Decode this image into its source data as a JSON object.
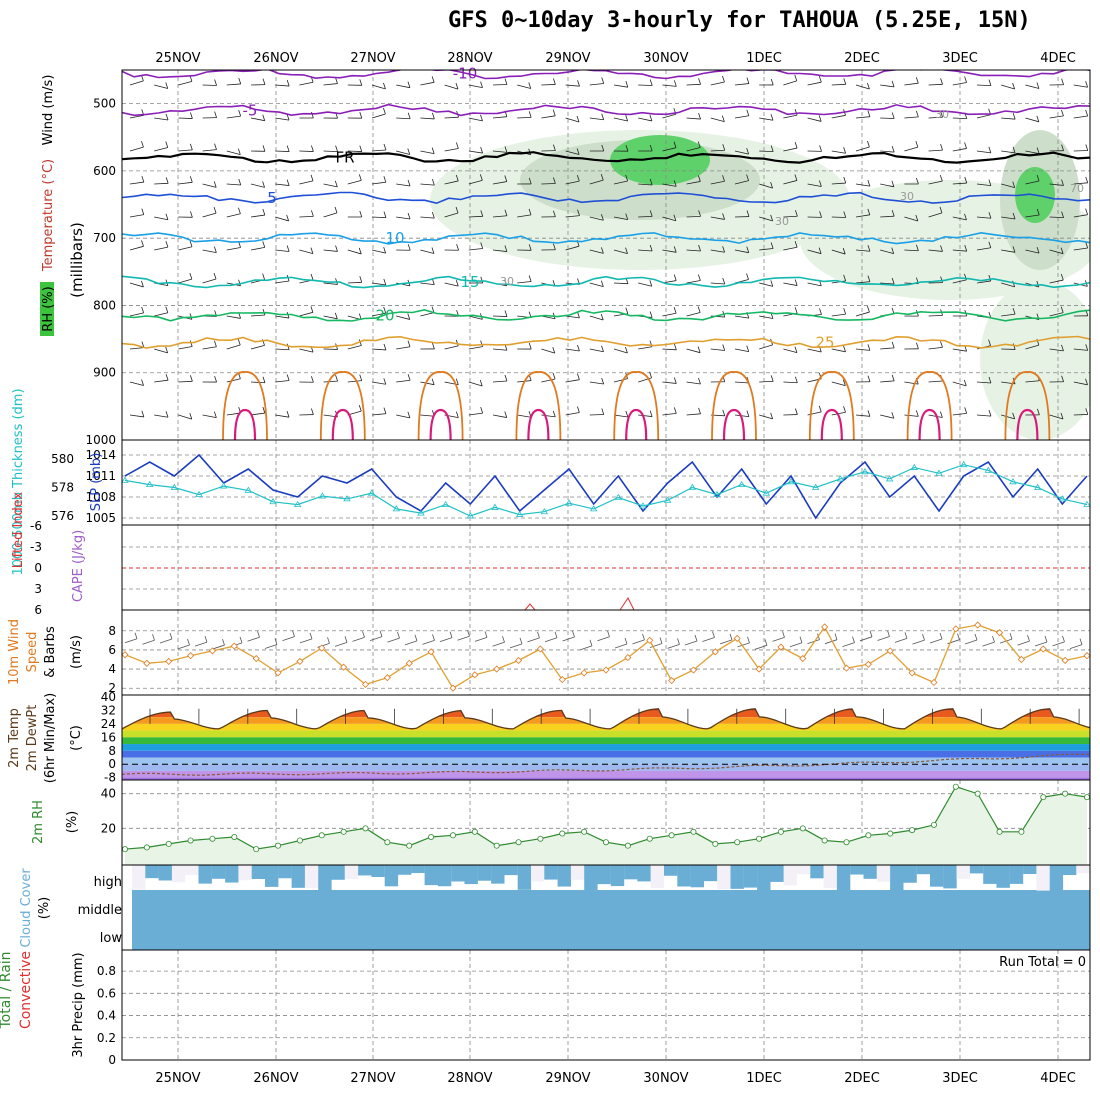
{
  "title": "GFS 0~10day 3-hourly for TAHOUA (5.25E, 15N)",
  "colors": {
    "grid": "#888888",
    "purple": "#8a1fb8",
    "black": "#000000",
    "blue": "#1f4fd6",
    "lightblue": "#1aa0e6",
    "teal": "#10b8b0",
    "green": "#14b860",
    "gold": "#e0a030",
    "orange": "#e07a20",
    "magenta": "#d81b7a",
    "rh_green": "#5fd16a",
    "slp": "#1a3cc0",
    "thick": "#20c0c8",
    "cloud": "#6aaed6",
    "cape": "#a05cc8",
    "li": "#e03030"
  },
  "chart_data": [
    {
      "type": "line",
      "panel": "cross-section",
      "ylabel": [
        "RH (%)",
        "Temperature (°C)",
        "Wind (m/s)",
        "(millibars)"
      ],
      "y_ticks": [
        "500",
        "600",
        "700",
        "800",
        "900",
        "1000"
      ],
      "x_ticks": [
        "25NOV",
        "26NOV",
        "27NOV",
        "28NOV",
        "29NOV",
        "30NOV",
        "1DEC",
        "2DEC",
        "3DEC",
        "4DEC"
      ],
      "series": [
        {
          "name": "-10",
          "level_mb": 455
        },
        {
          "name": "-5",
          "level_mb": 510
        },
        {
          "name": "FR",
          "level_mb": 580
        },
        {
          "name": "5",
          "level_mb": 640
        },
        {
          "name": "10",
          "level_mb": 700
        },
        {
          "name": "15",
          "level_mb": 765
        },
        {
          "name": "20",
          "level_mb": 815
        },
        {
          "name": "25",
          "level_mb": 855
        }
      ],
      "rh_labels": [
        "30",
        "30",
        "30",
        "30",
        "70"
      ]
    },
    {
      "type": "line",
      "panel": "slp-thickness",
      "ylabel_left": "1000-500mb Thickness (dm)",
      "ylabel_right": "SLP (mb)",
      "y_ticks_left": [
        "580",
        "578",
        "576"
      ],
      "y_ticks_right": [
        "1014",
        "1011",
        "1008",
        "1005"
      ],
      "slp": [
        1011,
        1013,
        1011,
        1014,
        1010,
        1012,
        1009,
        1008,
        1011,
        1010,
        1012,
        1008,
        1006,
        1010,
        1007,
        1011,
        1006,
        1009,
        1012,
        1007,
        1011,
        1006,
        1010,
        1013,
        1008,
        1012,
        1007,
        1011,
        1005,
        1010,
        1013,
        1008,
        1011,
        1006,
        1011,
        1013,
        1008,
        1012,
        1007,
        1011
      ],
      "thickness": [
        578.5,
        578.2,
        578.0,
        577.5,
        578.1,
        577.8,
        577.0,
        576.8,
        577.4,
        577.2,
        577.6,
        576.5,
        576.2,
        576.8,
        576.0,
        576.6,
        576.1,
        576.3,
        576.9,
        576.5,
        577.3,
        576.7,
        577.1,
        578.0,
        577.5,
        578.2,
        577.6,
        578.4,
        578.0,
        578.6,
        579.1,
        578.6,
        579.4,
        579.0,
        579.6,
        579.2,
        578.4,
        578.0,
        577.2,
        576.8
      ]
    },
    {
      "type": "line",
      "panel": "cape-li",
      "ylabel": [
        "Lifted Index",
        "CAPE (J/kg)"
      ],
      "y_ticks": [
        "-6",
        "-3",
        "0",
        "3",
        "6"
      ],
      "lifted_index_zero": 0
    },
    {
      "type": "line",
      "panel": "10m-wind",
      "ylabel": [
        "10m Wind",
        "Speed",
        "& Barbs",
        "(m/s)"
      ],
      "y_ticks": [
        "2",
        "4",
        "6",
        "8"
      ],
      "values": [
        5.5,
        4.6,
        4.8,
        5.4,
        5.9,
        6.4,
        5.1,
        3.6,
        4.8,
        6.2,
        4.2,
        2.4,
        3.1,
        4.6,
        5.8,
        2.0,
        3.4,
        4.0,
        4.9,
        6.1,
        2.9,
        3.6,
        3.9,
        5.2,
        7.0,
        2.8,
        3.9,
        5.8,
        7.2,
        4.0,
        6.3,
        5.1,
        8.4,
        4.1,
        4.5,
        5.9,
        3.6,
        2.6,
        8.2,
        8.6,
        7.8,
        5.0,
        6.1,
        4.9,
        5.4
      ]
    },
    {
      "type": "area",
      "panel": "2m-temp",
      "ylabel": [
        "2m Temp",
        "2m DewPt",
        "(6hr Min/Max)",
        "(°C)"
      ],
      "y_ticks": [
        "40",
        "32",
        "24",
        "16",
        "8",
        "0",
        "-8"
      ],
      "temp_max": [
        31,
        32,
        32,
        32,
        32,
        33,
        33,
        33,
        33,
        33
      ],
      "temp_min": [
        21,
        21,
        21,
        21,
        21,
        21,
        21,
        21,
        21,
        21
      ],
      "dewpoint_start": -6,
      "dewpoint_end": 6
    },
    {
      "type": "line",
      "panel": "2m-rh",
      "ylabel": [
        "2m RH",
        "(%)"
      ],
      "y_ticks": [
        "40",
        "20"
      ],
      "values": [
        8,
        9,
        11,
        13,
        14,
        15,
        8,
        10,
        13,
        16,
        18,
        20,
        12,
        10,
        15,
        16,
        18,
        10,
        12,
        14,
        17,
        18,
        12,
        10,
        14,
        16,
        18,
        11,
        12,
        14,
        18,
        20,
        13,
        12,
        16,
        17,
        19,
        22,
        44,
        40,
        18,
        18,
        38,
        40,
        38
      ]
    },
    {
      "type": "bar",
      "panel": "cloud-cover",
      "ylabel": [
        "Cloud Cover",
        "(%)"
      ],
      "levels": [
        "high",
        "middle",
        "low"
      ]
    },
    {
      "type": "bar",
      "panel": "precip",
      "ylabel": [
        "Total / Rain",
        "Convective",
        "3hr Precip (mm)"
      ],
      "y_ticks": [
        "0.8",
        "0.6",
        "0.4",
        "0.2",
        "0"
      ],
      "run_total_label": "Run Total = 0"
    }
  ]
}
